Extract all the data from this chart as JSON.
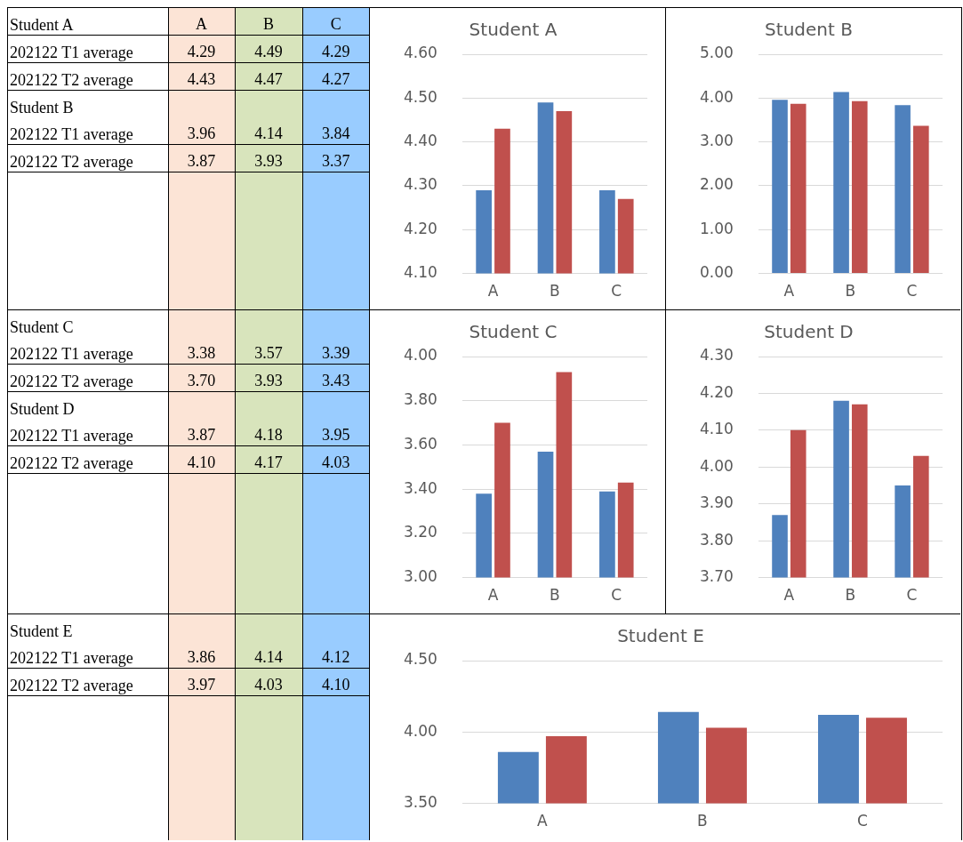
{
  "chart_data": [
    {
      "type": "other",
      "categories": [
        "A",
        "B",
        "C"
      ],
      "y_categories": [
        "Student A",
        "202122 T1 average",
        "202122 T2 average",
        "Student B",
        "202122 T1 average",
        "202122 T2 average",
        "Student C",
        "202122 T1 average",
        "202122 T2 average",
        "Student D",
        "202122 T1 average",
        "202122 T2 average",
        "Student E",
        "202122 T1 average",
        "202122 T2 average"
      ],
      "cell_labels": [
        [
          null,
          null,
          null
        ],
        [
          "4.29",
          "4.49",
          "4.29"
        ],
        [
          "4.43",
          "4.47",
          "4.27"
        ],
        [
          null,
          null,
          null
        ],
        [
          "3.96",
          "4.14",
          "3.84"
        ],
        [
          "3.87",
          "3.93",
          "3.37"
        ],
        [
          null,
          null,
          null
        ],
        [
          "3.38",
          "3.57",
          "3.39"
        ],
        [
          "3.70",
          "3.93",
          "3.43"
        ],
        [
          null,
          null,
          null
        ],
        [
          "3.87",
          "4.18",
          "3.95"
        ],
        [
          "4.10",
          "4.17",
          "4.03"
        ],
        [
          null,
          null,
          null
        ],
        [
          "3.86",
          "4.14",
          "4.12"
        ],
        [
          "3.97",
          "4.03",
          "4.10"
        ]
      ]
    },
    {
      "type": "bar",
      "title": "Student A",
      "categories": [
        "A",
        "B",
        "C"
      ],
      "series": [
        {
          "color": "#4f81bd",
          "values": [
            4.29,
            4.49,
            4.29
          ]
        },
        {
          "color": "#c0504d",
          "values": [
            4.43,
            4.47,
            4.27
          ]
        }
      ],
      "ylim": [
        4.1,
        4.6
      ],
      "yticks": [
        {
          "value": 4.1,
          "label": "4.10"
        },
        {
          "value": 4.2,
          "label": "4.20"
        },
        {
          "value": 4.3,
          "label": "4.30"
        },
        {
          "value": 4.4,
          "label": "4.40"
        },
        {
          "value": 4.5,
          "label": "4.50"
        },
        {
          "value": 4.6,
          "label": "4.60"
        }
      ],
      "grid": "y"
    },
    {
      "type": "bar",
      "title": "Student B",
      "categories": [
        "A",
        "B",
        "C"
      ],
      "series": [
        {
          "color": "#4f81bd",
          "values": [
            3.96,
            4.14,
            3.84
          ]
        },
        {
          "color": "#c0504d",
          "values": [
            3.87,
            3.93,
            3.37
          ]
        }
      ],
      "ylim": [
        0,
        5
      ],
      "yticks": [
        {
          "value": 0,
          "label": "0.00"
        },
        {
          "value": 1,
          "label": "1.00"
        },
        {
          "value": 2,
          "label": "2.00"
        },
        {
          "value": 3,
          "label": "3.00"
        },
        {
          "value": 4,
          "label": "4.00"
        },
        {
          "value": 5,
          "label": "5.00"
        }
      ],
      "grid": "y"
    },
    {
      "type": "bar",
      "title": "Student C",
      "categories": [
        "A",
        "B",
        "C"
      ],
      "series": [
        {
          "color": "#4f81bd",
          "values": [
            3.38,
            3.57,
            3.39
          ]
        },
        {
          "color": "#c0504d",
          "values": [
            3.7,
            3.93,
            3.43
          ]
        }
      ],
      "ylim": [
        3,
        4
      ],
      "yticks": [
        {
          "value": 3,
          "label": "3.00"
        },
        {
          "value": 3.2,
          "label": "3.20"
        },
        {
          "value": 3.4,
          "label": "3.40"
        },
        {
          "value": 3.6,
          "label": "3.60"
        },
        {
          "value": 3.8,
          "label": "3.80"
        },
        {
          "value": 4,
          "label": "4.00"
        }
      ],
      "grid": "y"
    },
    {
      "type": "bar",
      "title": "Student D",
      "categories": [
        "A",
        "B",
        "C"
      ],
      "series": [
        {
          "color": "#4f81bd",
          "values": [
            3.87,
            4.18,
            3.95
          ]
        },
        {
          "color": "#c0504d",
          "values": [
            4.1,
            4.17,
            4.03
          ]
        }
      ],
      "ylim": [
        3.7,
        4.3
      ],
      "yticks": [
        {
          "value": 3.7,
          "label": "3.70"
        },
        {
          "value": 3.8,
          "label": "3.80"
        },
        {
          "value": 3.9,
          "label": "3.90"
        },
        {
          "value": 4,
          "label": "4.00"
        },
        {
          "value": 4.1,
          "label": "4.10"
        },
        {
          "value": 4.2,
          "label": "4.20"
        },
        {
          "value": 4.3,
          "label": "4.30"
        }
      ],
      "grid": "y"
    },
    {
      "type": "bar",
      "title": "Student E",
      "categories": [
        "A",
        "B",
        "C"
      ],
      "series": [
        {
          "color": "#4f81bd",
          "values": [
            3.86,
            4.14,
            4.12
          ]
        },
        {
          "color": "#c0504d",
          "values": [
            3.97,
            4.03,
            4.1
          ]
        }
      ],
      "ylim": [
        3.5,
        4.5
      ],
      "yticks": [
        {
          "value": 3.5,
          "label": "3.50"
        },
        {
          "value": 4,
          "label": "4.00"
        },
        {
          "value": 4.5,
          "label": "4.50"
        }
      ],
      "grid": "y"
    }
  ]
}
